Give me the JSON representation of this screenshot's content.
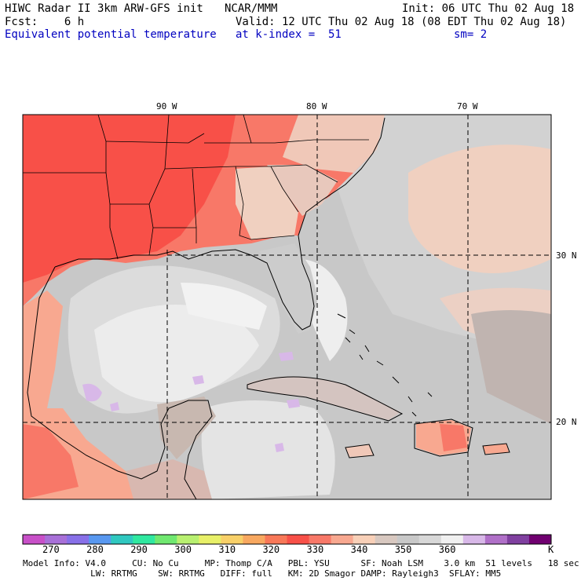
{
  "header": {
    "line1_left": "HIWC Radar II 3km ARW-GFS init",
    "line1_mid": "NCAR/MMM",
    "line1_right": "Init: 06 UTC Thu 02 Aug 18",
    "fcst": "Fcst:    6 h",
    "valid": "Valid: 12 UTC Thu 02 Aug 18 (08 EDT Thu 02 Aug 18)",
    "field": "Equivalent potential temperature",
    "level": "at k-index =  51",
    "smooth": "sm= 2"
  },
  "map": {
    "lon_labels": [
      "90 W",
      "80 W",
      "70 W"
    ],
    "lat_labels": [
      "30 N",
      "20 N"
    ]
  },
  "colorbar": {
    "ticks": [
      "270",
      "280",
      "290",
      "300",
      "310",
      "320",
      "330",
      "340",
      "350",
      "360"
    ],
    "unit": "K",
    "colors": [
      "#c850c8",
      "#a870d8",
      "#8870e8",
      "#5898f0",
      "#30c8c0",
      "#30e8a0",
      "#70e870",
      "#b8f070",
      "#e8f068",
      "#f8d068",
      "#f8a860",
      "#f87858",
      "#f85048",
      "#f87868",
      "#f8a890",
      "#f8d0b8",
      "#d8c8c0",
      "#c8c8c8",
      "#d8d8d8",
      "#f0f0f0",
      "#d8b8e8",
      "#b070c8",
      "#8040a0",
      "#700070"
    ]
  },
  "footer": {
    "line1": "Model Info: V4.0     CU: No Cu     MP: Thomp C/A   PBL: YSU      SF: Noah LSM    3.0 km  51 levels   18 sec",
    "line2": "             LW: RRTMG    SW: RRTMG   DIFF: full   KM: 2D Smagor DAMP: Rayleigh3  SFLAY: MM5"
  }
}
